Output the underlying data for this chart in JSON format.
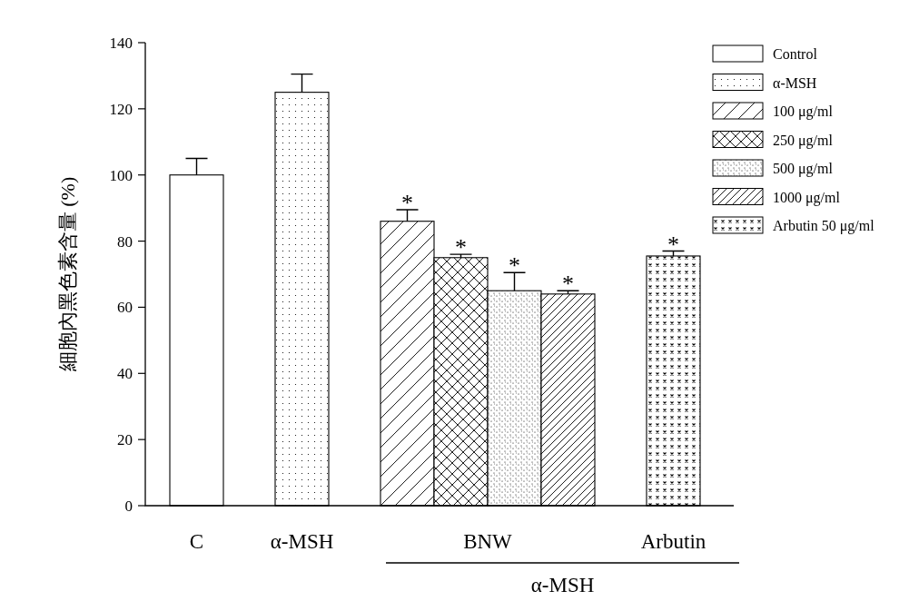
{
  "chart_data": {
    "type": "bar",
    "ylabel": "細胞內黑色素含量 (%)",
    "categories": [
      "C",
      "α-MSH",
      "BNW",
      "Arbutin"
    ],
    "series": [
      {
        "name": "Control",
        "color": "#ffffff",
        "values": [
          100,
          null,
          null,
          null
        ],
        "errors": [
          5,
          null,
          null,
          null
        ]
      },
      {
        "name": "α-MSH",
        "color": "#000000",
        "values": [
          null,
          125,
          null,
          null
        ],
        "errors": [
          null,
          5.5,
          null,
          null
        ]
      },
      {
        "name": "100 μg/ml",
        "color": "#000000",
        "values": [
          null,
          null,
          86,
          null
        ],
        "errors": [
          null,
          null,
          3.5,
          null
        ],
        "value_labels": [
          null,
          null,
          "*",
          null
        ]
      },
      {
        "name": "250 μg/ml",
        "color": "#000000",
        "values": [
          null,
          null,
          75,
          null
        ],
        "errors": [
          null,
          null,
          1,
          null
        ],
        "value_labels": [
          null,
          null,
          "*",
          null
        ]
      },
      {
        "name": "500 μg/ml",
        "color": "#000000",
        "values": [
          null,
          null,
          65,
          null
        ],
        "errors": [
          null,
          null,
          5.5,
          null
        ],
        "value_labels": [
          null,
          null,
          "*",
          null
        ]
      },
      {
        "name": "1000 μg/ml",
        "color": "#000000",
        "values": [
          null,
          null,
          64,
          null
        ],
        "errors": [
          null,
          null,
          1,
          null
        ],
        "value_labels": [
          null,
          null,
          "*",
          null
        ]
      },
      {
        "name": "Arbutin 50 μg/ml",
        "color": "#000000",
        "values": [
          null,
          null,
          null,
          75.5
        ],
        "errors": [
          null,
          null,
          null,
          1.5
        ],
        "value_labels": [
          null,
          null,
          null,
          "*"
        ]
      }
    ],
    "ylim": [
      0,
      140
    ],
    "yticks": [
      0,
      20,
      40,
      60,
      80,
      100,
      120,
      140
    ],
    "legend": "top right",
    "annotations": [
      "α-MSH"
    ]
  }
}
